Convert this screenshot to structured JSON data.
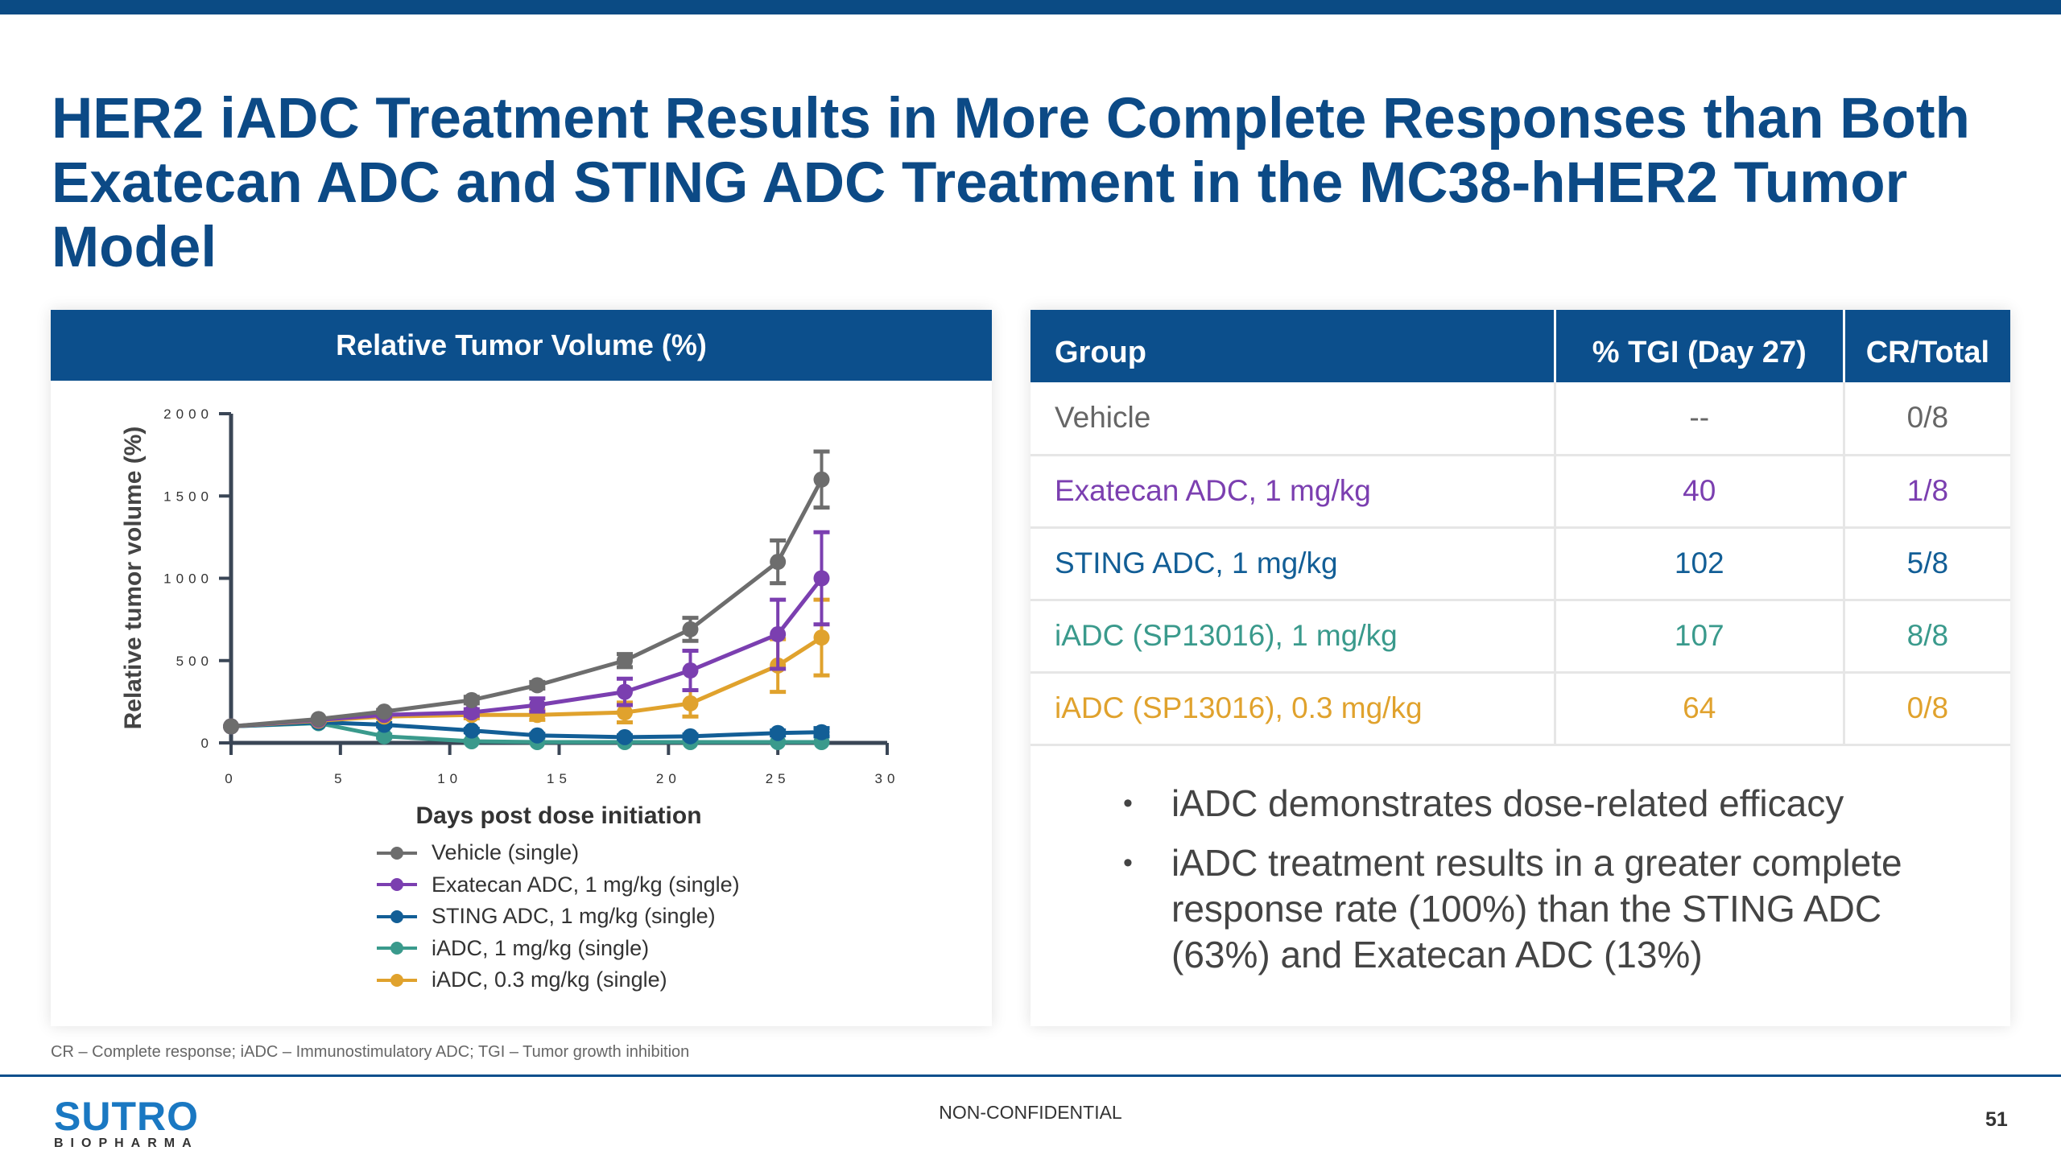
{
  "title": "HER2 iADC Treatment Results in More Complete Responses than Both Exatecan ADC and STING ADC Treatment in the MC38-hHER2 Tumor Model",
  "chart_panel_title": "Relative Tumor Volume (%)",
  "chart_data": {
    "type": "line",
    "title": "Relative Tumor Volume (%)",
    "xlabel": "Days post dose initiation",
    "ylabel": "Relative tumor volume (%)",
    "xlim": [
      0,
      30
    ],
    "ylim": [
      0,
      2000
    ],
    "xticks": [
      "0",
      "5",
      "10",
      "15",
      "20",
      "25",
      "30"
    ],
    "yticks": [
      "0",
      "500",
      "1000",
      "1500",
      "2000"
    ],
    "x": [
      0,
      4,
      7,
      11,
      14,
      18,
      21,
      25,
      27
    ],
    "legend_position": "bottom",
    "series": [
      {
        "name": "Vehicle (single)",
        "color": "#6d6d6d",
        "values": [
          100,
          145,
          190,
          260,
          350,
          500,
          690,
          1100,
          1600
        ],
        "errors": [
          0,
          0,
          10,
          20,
          20,
          40,
          70,
          130,
          170
        ]
      },
      {
        "name": "Exatecan ADC, 1 mg/kg (single)",
        "color": "#7b3fb0",
        "values": [
          100,
          140,
          170,
          185,
          230,
          310,
          440,
          660,
          1000
        ],
        "errors": [
          0,
          0,
          10,
          20,
          40,
          80,
          120,
          210,
          280
        ]
      },
      {
        "name": "STING ADC, 1 mg/kg (single)",
        "color": "#125e96",
        "values": [
          100,
          125,
          110,
          75,
          45,
          35,
          40,
          60,
          65
        ],
        "errors": [
          0,
          5,
          10,
          10,
          10,
          10,
          10,
          15,
          25
        ]
      },
      {
        "name": "iADC, 1 mg/kg (single)",
        "color": "#3a9a8c",
        "values": [
          100,
          120,
          40,
          10,
          5,
          5,
          5,
          5,
          5
        ],
        "errors": [
          0,
          5,
          10,
          5,
          0,
          0,
          0,
          0,
          0
        ]
      },
      {
        "name": "iADC, 0.3 mg/kg (single)",
        "color": "#e0a22d",
        "values": [
          100,
          135,
          160,
          170,
          170,
          185,
          240,
          470,
          640
        ],
        "errors": [
          0,
          5,
          10,
          20,
          30,
          60,
          80,
          160,
          230
        ]
      }
    ]
  },
  "table": {
    "headers": [
      "Group",
      "% TGI (Day 27)",
      "CR/Total"
    ],
    "rows": [
      {
        "group": "Vehicle",
        "tgi": "--",
        "cr": "0/8",
        "color": "#666666"
      },
      {
        "group": "Exatecan ADC, 1 mg/kg",
        "tgi": "40",
        "cr": "1/8",
        "color": "#7b3fb0"
      },
      {
        "group": "STING ADC, 1 mg/kg",
        "tgi": "102",
        "cr": "5/8",
        "color": "#125e96"
      },
      {
        "group": "iADC (SP13016), 1 mg/kg",
        "tgi": "107",
        "cr": "8/8",
        "color": "#3a9a8c"
      },
      {
        "group": "iADC (SP13016), 0.3 mg/kg",
        "tgi": "64",
        "cr": "0/8",
        "color": "#e0a22d"
      }
    ]
  },
  "bullets": [
    "iADC demonstrates dose-related efficacy",
    "iADC treatment results in a greater complete response rate (100%) than the STING ADC (63%) and Exatecan ADC (13%)"
  ],
  "footnote": "CR – Complete response; iADC – Immunostimulatory ADC; TGI – Tumor growth inhibition",
  "logo": {
    "line1": "SUTRO",
    "line2": "BIOPHARMA"
  },
  "classification": "NON-CONFIDENTIAL",
  "page_number": "51"
}
